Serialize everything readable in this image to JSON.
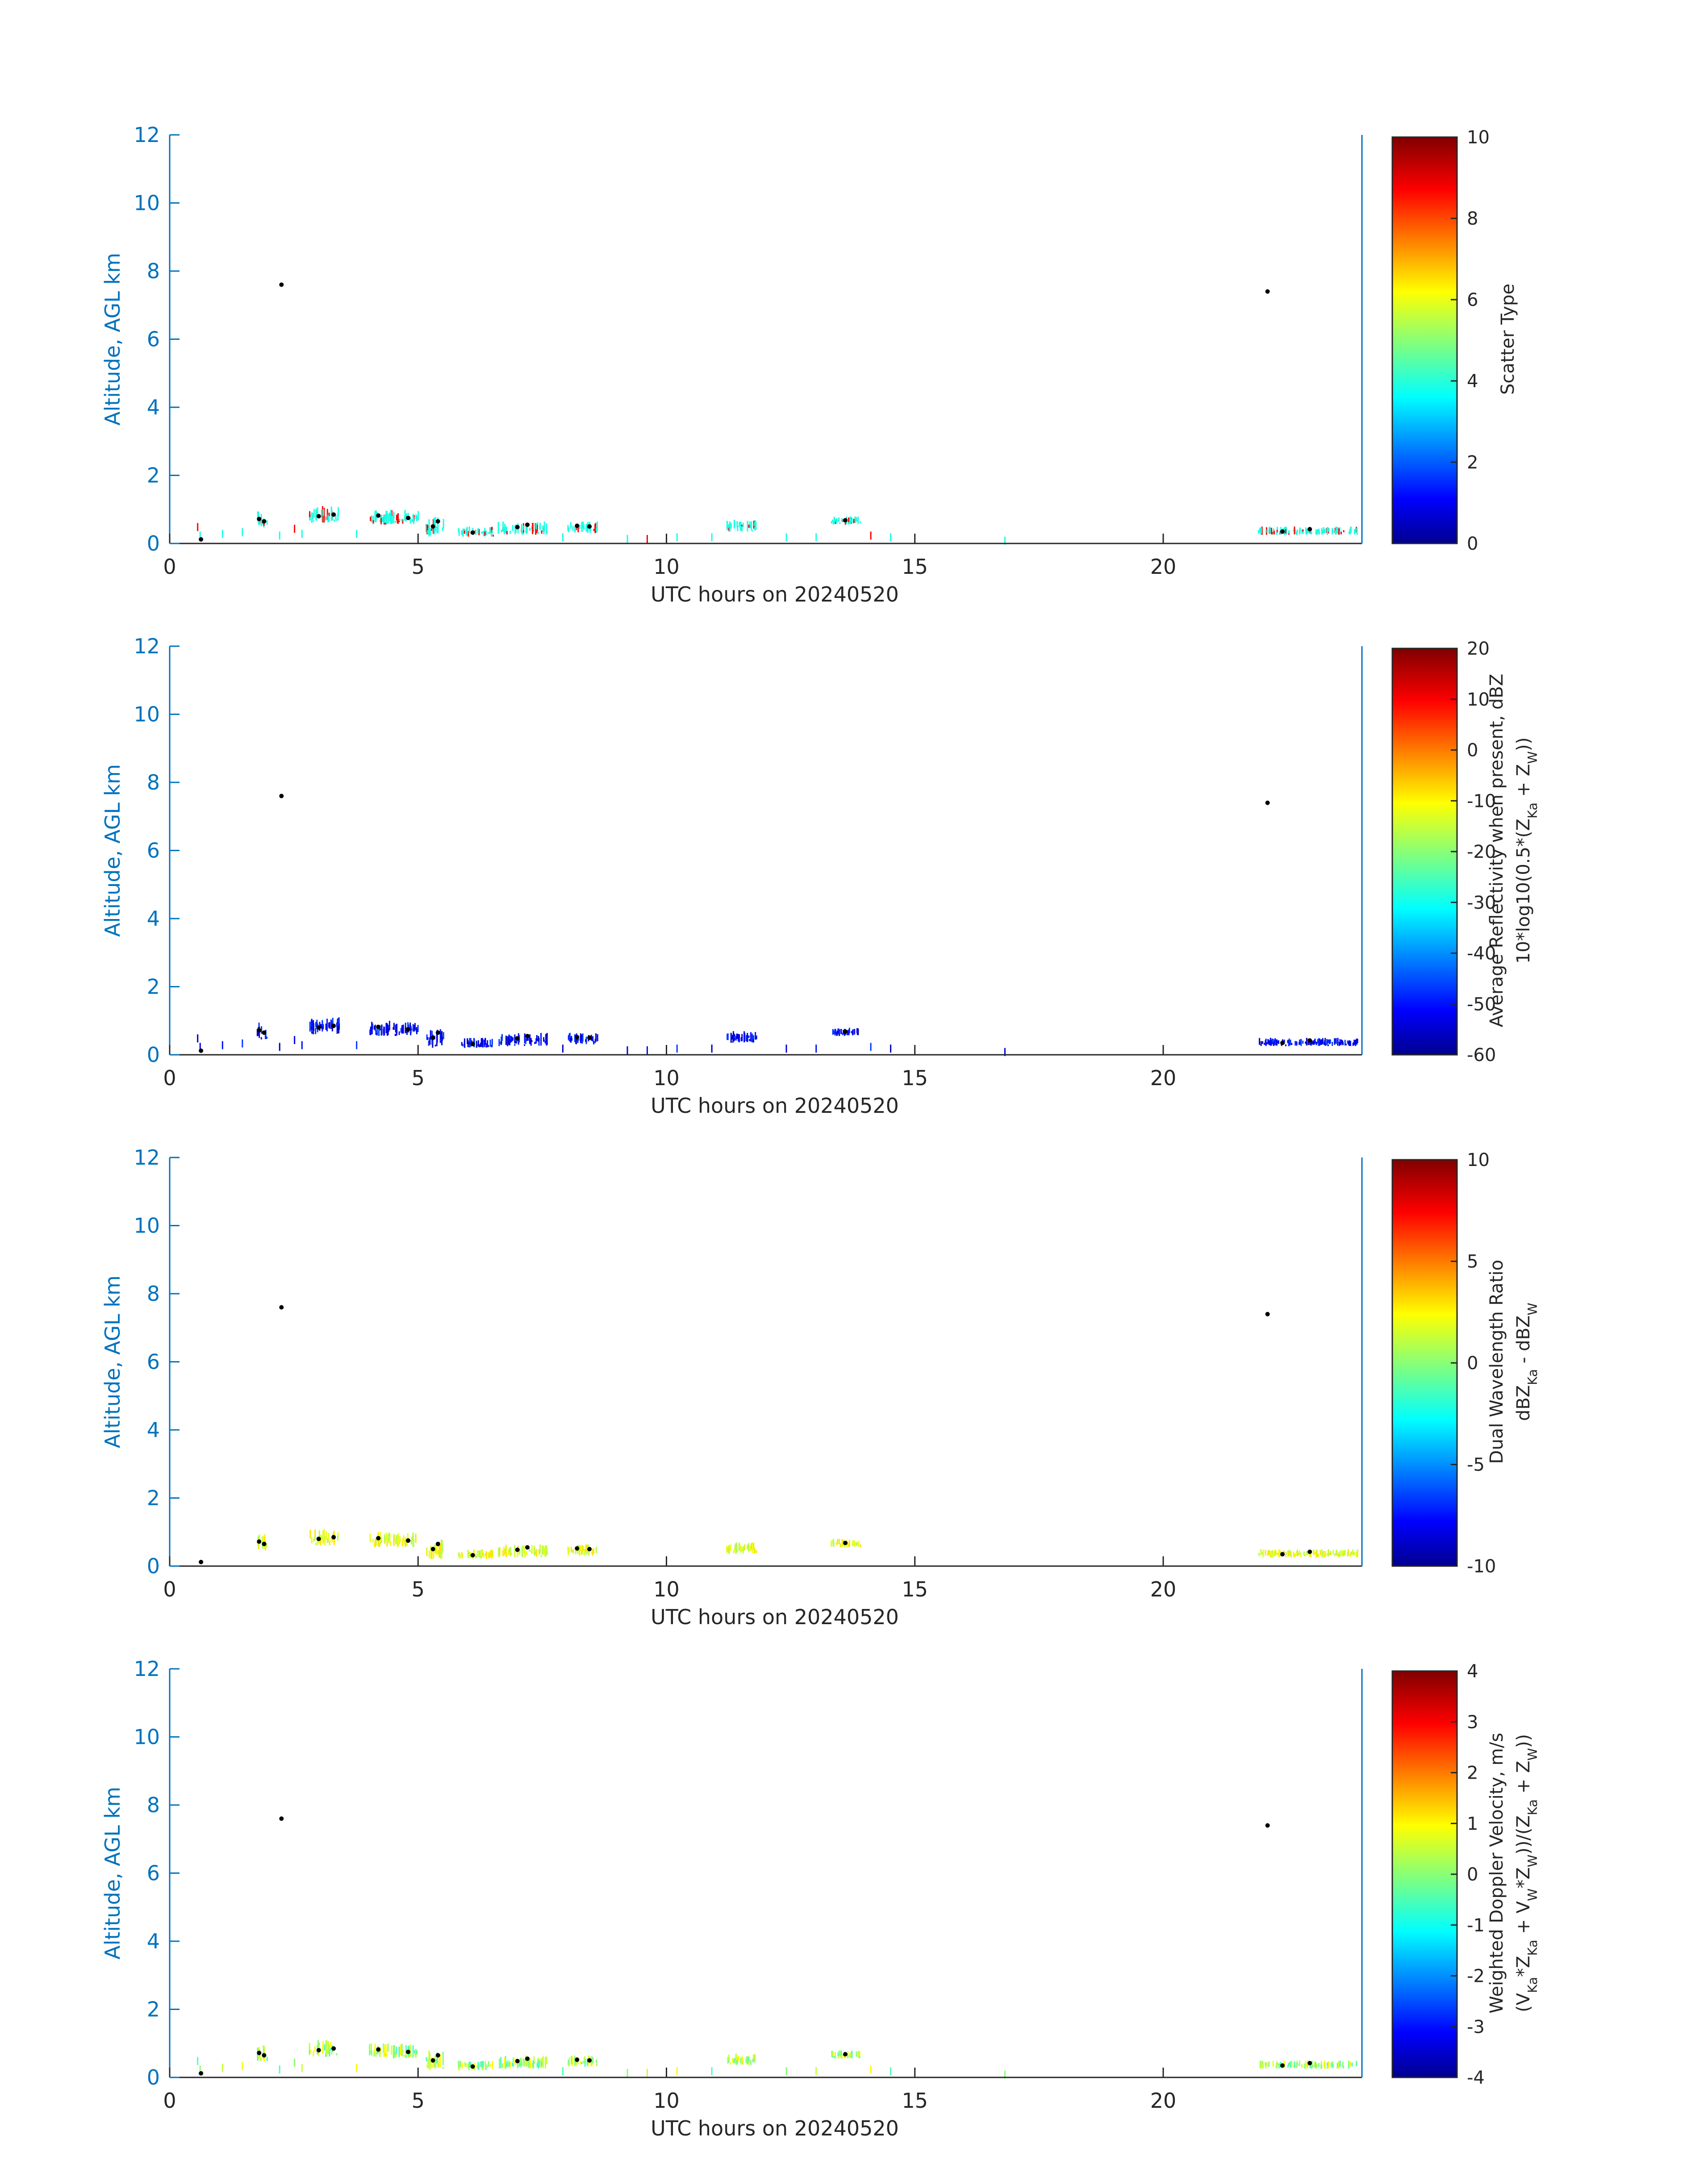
{
  "chart_data": [
    {
      "type": "scatter",
      "xlabel": "UTC hours on 20240520",
      "ylabel": "Altitude, AGL km",
      "xlim": [
        0,
        24
      ],
      "ylim": [
        0,
        12
      ],
      "xticks": [
        "0",
        "5",
        "10",
        "15",
        "20"
      ],
      "yticks": [
        "0",
        "2",
        "4",
        "6",
        "8",
        "10",
        "12"
      ],
      "colorbar": {
        "label": [
          "Scatter Type"
        ],
        "range": [
          0,
          10
        ],
        "ticks": [
          "0",
          "2",
          "4",
          "6",
          "8",
          "10"
        ]
      }
    },
    {
      "type": "scatter",
      "xlabel": "UTC hours on 20240520",
      "ylabel": "Altitude, AGL km",
      "xlim": [
        0,
        24
      ],
      "ylim": [
        0,
        12
      ],
      "xticks": [
        "0",
        "5",
        "10",
        "15",
        "20"
      ],
      "yticks": [
        "0",
        "2",
        "4",
        "6",
        "8",
        "10",
        "12"
      ],
      "colorbar": {
        "label": [
          "Average Reflectivity when present, dBZ",
          "10*log10(0.5*(Z_Ka + Z_W))"
        ],
        "range": [
          -60,
          20
        ],
        "ticks": [
          "-60",
          "-50",
          "-40",
          "-30",
          "-20",
          "-10",
          "0",
          "10",
          "20"
        ]
      }
    },
    {
      "type": "scatter",
      "xlabel": "UTC hours on 20240520",
      "ylabel": "Altitude, AGL km",
      "xlim": [
        0,
        24
      ],
      "ylim": [
        0,
        12
      ],
      "xticks": [
        "0",
        "5",
        "10",
        "15",
        "20"
      ],
      "yticks": [
        "0",
        "2",
        "4",
        "6",
        "8",
        "10",
        "12"
      ],
      "colorbar": {
        "label": [
          "Dual Wavelength Ratio",
          "dBZ_Ka - dBZ_W"
        ],
        "range": [
          -10,
          10
        ],
        "ticks": [
          "-10",
          "-5",
          "0",
          "5",
          "10"
        ]
      }
    },
    {
      "type": "scatter",
      "xlabel": "UTC hours on 20240520",
      "ylabel": "Altitude, AGL km",
      "xlim": [
        0,
        24
      ],
      "ylim": [
        0,
        12
      ],
      "xticks": [
        "0",
        "5",
        "10",
        "15",
        "20"
      ],
      "yticks": [
        "0",
        "2",
        "4",
        "6",
        "8",
        "10",
        "12"
      ],
      "colorbar": {
        "label": [
          "Weighted Doppler Velocity, m/s",
          "(V_Ka*Z_Ka + V_W*Z_W))/(Z_Ka + Z_W))"
        ],
        "range": [
          -4,
          4
        ],
        "ticks": [
          "-4",
          "-3",
          "-2",
          "-1",
          "0",
          "1",
          "2",
          "3",
          "4"
        ]
      }
    }
  ],
  "black_points": [
    [
      0.63,
      0.12
    ],
    [
      1.8,
      0.72
    ],
    [
      1.9,
      0.65
    ],
    [
      2.25,
      7.6
    ],
    [
      3.0,
      0.8
    ],
    [
      3.3,
      0.85
    ],
    [
      4.2,
      0.82
    ],
    [
      4.8,
      0.75
    ],
    [
      5.3,
      0.5
    ],
    [
      5.4,
      0.65
    ],
    [
      6.1,
      0.32
    ],
    [
      7.0,
      0.48
    ],
    [
      7.2,
      0.55
    ],
    [
      8.2,
      0.52
    ],
    [
      8.45,
      0.5
    ],
    [
      13.6,
      0.68
    ],
    [
      22.1,
      7.4
    ],
    [
      22.4,
      0.35
    ],
    [
      22.95,
      0.42
    ]
  ],
  "echo_clusters": [
    [
      1.75,
      1.95,
      0.45,
      0.9
    ],
    [
      2.8,
      3.4,
      0.6,
      1.05
    ],
    [
      4.0,
      5.0,
      0.55,
      0.95
    ],
    [
      5.15,
      5.5,
      0.2,
      0.75
    ],
    [
      5.8,
      6.5,
      0.2,
      0.45
    ],
    [
      6.6,
      7.6,
      0.25,
      0.6
    ],
    [
      8.0,
      8.6,
      0.3,
      0.6
    ],
    [
      11.2,
      11.8,
      0.35,
      0.65
    ],
    [
      13.3,
      13.9,
      0.55,
      0.75
    ],
    [
      21.9,
      23.9,
      0.25,
      0.45
    ]
  ],
  "sparse_echoes": [
    [
      0.55,
      0.6
    ],
    [
      0.6,
      0.35
    ],
    [
      1.05,
      0.4
    ],
    [
      1.45,
      0.45
    ],
    [
      2.2,
      0.35
    ],
    [
      2.5,
      0.55
    ],
    [
      2.65,
      0.4
    ],
    [
      3.75,
      0.4
    ],
    [
      7.9,
      0.3
    ],
    [
      9.2,
      0.25
    ],
    [
      9.6,
      0.25
    ],
    [
      10.2,
      0.3
    ],
    [
      10.9,
      0.3
    ],
    [
      12.4,
      0.3
    ],
    [
      13.0,
      0.3
    ],
    [
      14.1,
      0.35
    ],
    [
      14.5,
      0.3
    ],
    [
      16.8,
      0.2
    ]
  ]
}
